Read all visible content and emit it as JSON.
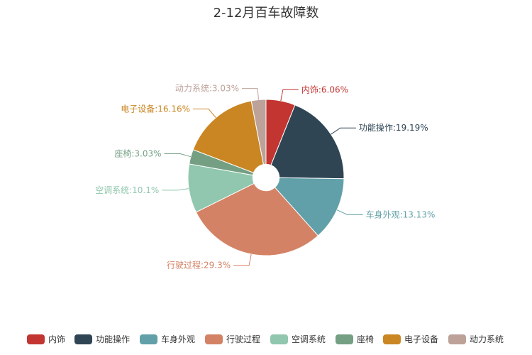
{
  "chart_data": {
    "type": "pie",
    "title": "2-12月百车故障数",
    "inner_radius_ratio": 0.17,
    "slices": [
      {
        "name": "内饰",
        "label": "内饰:6.06%",
        "value": 6.06,
        "color": "#c23531"
      },
      {
        "name": "功能操作",
        "label": "功能操作:19.19%",
        "value": 19.19,
        "color": "#2f4554"
      },
      {
        "name": "车身外观",
        "label": "车身外观:13.13%",
        "value": 13.13,
        "color": "#61a0a8"
      },
      {
        "name": "行驶过程",
        "label": "行驶过程:29.3%",
        "value": 29.3,
        "color": "#d48265"
      },
      {
        "name": "空调系统",
        "label": "空调系统:10.1%",
        "value": 10.1,
        "color": "#91c7ae"
      },
      {
        "name": "座椅",
        "label": "座椅:3.03%",
        "value": 3.03,
        "color": "#749f83"
      },
      {
        "name": "电子设备",
        "label": "电子设备:16.16%",
        "value": 16.16,
        "color": "#ca8622"
      },
      {
        "name": "动力系统",
        "label": "动力系统:3.03%",
        "value": 3.03,
        "color": "#bda29a"
      }
    ],
    "legend": {
      "position": "bottom"
    }
  }
}
